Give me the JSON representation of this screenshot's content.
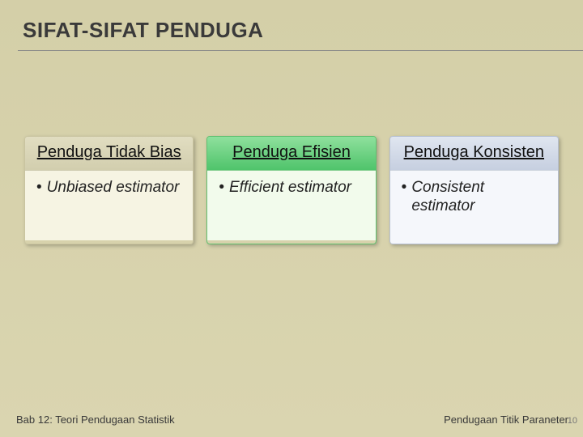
{
  "title": "SIFAT-SIFAT PENDUGA",
  "cards": [
    {
      "header": "Penduga Tidak Bias",
      "body": "Unbiased estimator",
      "header_bg": "linear-gradient(180deg,#e1ddc1 0%, #d2ceae 100%)",
      "body_bg": "#f6f4e3",
      "border": "#c9c4a0"
    },
    {
      "header": "Penduga Efisien",
      "body": "Efficient estimator",
      "header_bg": "linear-gradient(180deg,#8fe09d 0%, #4fc46b 100%)",
      "body_bg": "#f2fbec",
      "border": "#5fbf6f"
    },
    {
      "header": "Penduga Konsisten",
      "body": "Consistent estimator",
      "header_bg": "linear-gradient(180deg,#e0e6f0 0%, #c6cfe0 100%)",
      "body_bg": "#f5f7fb",
      "border": "#b5bfd2"
    }
  ],
  "footer_left": "Bab 12: Teori Pendugaan Statistik",
  "footer_right": "Pendugaan Titik Paraneter",
  "page_number": "10"
}
